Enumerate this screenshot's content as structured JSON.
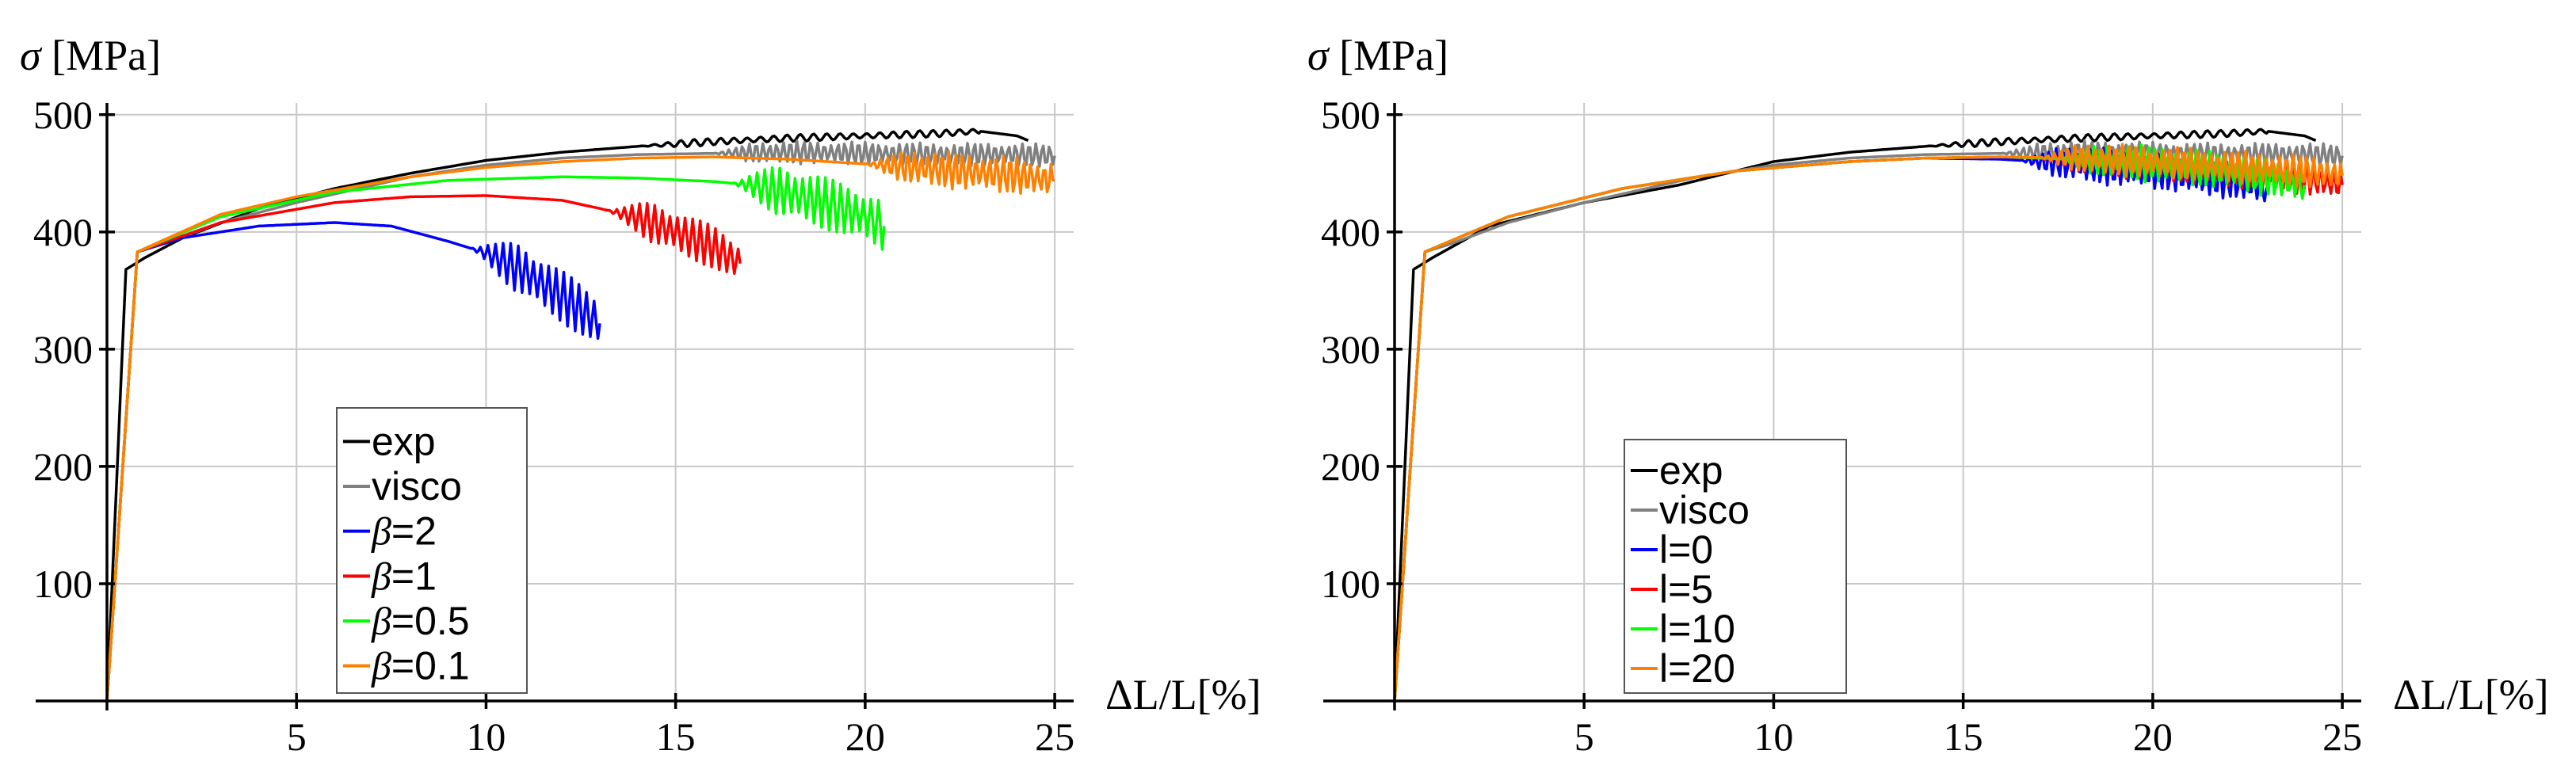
{
  "chart_data": [
    {
      "type": "line",
      "title": "",
      "ylabel": "σ [MPa]",
      "xlabel": "ΔL/L[%]",
      "xlim": [
        0,
        25.5
      ],
      "ylim": [
        0,
        510
      ],
      "xticks": [
        5,
        10,
        15,
        20,
        25
      ],
      "yticks": [
        100,
        200,
        300,
        400,
        500
      ],
      "grid": true,
      "legend_position": "lower-left",
      "series": [
        {
          "name": "exp",
          "label_prefix": "",
          "label_value": "exp",
          "color": "#000000",
          "points": [
            [
              0,
              0
            ],
            [
              0.5,
              368
            ],
            [
              1,
              378
            ],
            [
              2,
              395
            ],
            [
              4,
              420
            ],
            [
              6,
              437
            ],
            [
              8,
              450
            ],
            [
              10,
              461
            ],
            [
              12,
              468
            ],
            [
              14,
              473
            ],
            [
              16,
              477
            ],
            [
              18,
              480
            ],
            [
              20,
              482
            ],
            [
              22,
              484
            ],
            [
              23,
              486
            ],
            [
              24,
              482
            ],
            [
              24.3,
              478
            ]
          ],
          "oscillation": {
            "start": 14,
            "end": 23,
            "amplitude": 3,
            "period": 0.35
          }
        },
        {
          "name": "visco",
          "label_prefix": "",
          "label_value": "visco",
          "color": "#808080",
          "points": [
            [
              0,
              0
            ],
            [
              0.8,
              383
            ],
            [
              1.5,
              390
            ],
            [
              3,
              408
            ],
            [
              5,
              425
            ],
            [
              8,
              447
            ],
            [
              10,
              457
            ],
            [
              12,
              463
            ],
            [
              14,
              466
            ],
            [
              16,
              467
            ],
            [
              18,
              468
            ],
            [
              20,
              467
            ],
            [
              22,
              466
            ],
            [
              24,
              466
            ],
            [
              25,
              465
            ]
          ],
          "oscillation": {
            "start": 16,
            "end": 25,
            "amplitude": 10,
            "period": 0.18
          }
        },
        {
          "name": "β=2",
          "label_prefix": "β",
          "label_value": "=2",
          "color": "#0000ff",
          "points": [
            [
              0,
              0
            ],
            [
              0.8,
              383
            ],
            [
              2,
              395
            ],
            [
              4,
              405
            ],
            [
              6,
              408
            ],
            [
              7.5,
              405
            ],
            [
              9,
              392
            ],
            [
              10,
              382
            ],
            [
              11,
              366
            ],
            [
              12,
              345
            ],
            [
              13,
              322
            ]
          ],
          "oscillation": {
            "start": 9.6,
            "end": 13,
            "amplitude": 22,
            "period": 0.2
          }
        },
        {
          "name": "β=1",
          "label_prefix": "β",
          "label_value": "=1",
          "color": "#ff0000",
          "points": [
            [
              0,
              0
            ],
            [
              0.8,
              383
            ],
            [
              3,
              408
            ],
            [
              6,
              425
            ],
            [
              8,
              430
            ],
            [
              10,
              431
            ],
            [
              12,
              427
            ],
            [
              13,
              420
            ],
            [
              14,
              412
            ],
            [
              15,
              400
            ],
            [
              16,
              387
            ],
            [
              16.7,
              373
            ]
          ],
          "oscillation": {
            "start": 13.2,
            "end": 16.7,
            "amplitude": 18,
            "period": 0.2
          }
        },
        {
          "name": "β=0.5",
          "label_prefix": "β",
          "label_value": "=0.5",
          "color": "#00ff00",
          "points": [
            [
              0,
              0
            ],
            [
              0.8,
              383
            ],
            [
              3,
              413
            ],
            [
              6,
              434
            ],
            [
              9,
              444
            ],
            [
              12,
              447
            ],
            [
              14,
              446
            ],
            [
              16,
              443
            ],
            [
              17,
              440
            ],
            [
              18,
              433
            ],
            [
              19,
              424
            ],
            [
              20,
              413
            ],
            [
              20.5,
              405
            ]
          ],
          "oscillation": {
            "start": 16.5,
            "end": 20.5,
            "amplitude": 22,
            "period": 0.2
          }
        },
        {
          "name": "β=0.1",
          "label_prefix": "β",
          "label_value": "=0.1",
          "color": "#ff8000",
          "points": [
            [
              0,
              0
            ],
            [
              0.8,
              383
            ],
            [
              3,
              415
            ],
            [
              5,
              430
            ],
            [
              8,
              447
            ],
            [
              10,
              455
            ],
            [
              12,
              460
            ],
            [
              14,
              463
            ],
            [
              16,
              464
            ],
            [
              18,
              462
            ],
            [
              20,
              458
            ],
            [
              22,
              453
            ],
            [
              24,
              448
            ],
            [
              25,
              444
            ]
          ],
          "oscillation": {
            "start": 20,
            "end": 25,
            "amplitude": 16,
            "period": 0.18
          }
        }
      ]
    },
    {
      "type": "line",
      "title": "",
      "ylabel": "σ [MPa]",
      "xlabel": "ΔL/L[%]",
      "xlim": [
        0,
        25.5
      ],
      "ylim": [
        0,
        510
      ],
      "xticks": [
        5,
        10,
        15,
        20,
        25
      ],
      "yticks": [
        100,
        200,
        300,
        400,
        500
      ],
      "grid": true,
      "legend_position": "lower-left",
      "series": [
        {
          "name": "exp",
          "label_prefix": "",
          "label_value": "exp",
          "color": "#000000",
          "points": [
            [
              0,
              0
            ],
            [
              0.5,
              368
            ],
            [
              1,
              378
            ],
            [
              2.5,
              405
            ],
            [
              5,
              425
            ],
            [
              7.5,
              440
            ],
            [
              10,
              460
            ],
            [
              12,
              468
            ],
            [
              14,
              473
            ],
            [
              16,
              477
            ],
            [
              18,
              480
            ],
            [
              20,
              482
            ],
            [
              22,
              484
            ],
            [
              23,
              486
            ],
            [
              24,
              482
            ],
            [
              24.3,
              478
            ]
          ],
          "oscillation": {
            "start": 14,
            "end": 23,
            "amplitude": 3,
            "period": 0.35
          }
        },
        {
          "name": "visco",
          "label_prefix": "",
          "label_value": "visco",
          "color": "#808080",
          "points": [
            [
              0,
              0
            ],
            [
              0.8,
              383
            ],
            [
              1.5,
              390
            ],
            [
              3,
              408
            ],
            [
              5,
              425
            ],
            [
              8,
              447
            ],
            [
              10,
              457
            ],
            [
              12,
              463
            ],
            [
              14,
              466
            ],
            [
              16,
              467
            ],
            [
              18,
              468
            ],
            [
              20,
              467
            ],
            [
              22,
              466
            ],
            [
              24,
              466
            ],
            [
              25,
              465
            ]
          ],
          "oscillation": {
            "start": 16,
            "end": 25,
            "amplitude": 10,
            "period": 0.18
          }
        },
        {
          "name": "l=0",
          "label_prefix": "",
          "label_value": "l=0",
          "color": "#0000ff",
          "points": [
            [
              0,
              0
            ],
            [
              0.8,
              383
            ],
            [
              3,
              413
            ],
            [
              6,
              437
            ],
            [
              9,
              452
            ],
            [
              12,
              460
            ],
            [
              14,
              463
            ],
            [
              16,
              462
            ],
            [
              18,
              458
            ],
            [
              20,
              452
            ],
            [
              22,
              444
            ],
            [
              23,
              438
            ]
          ],
          "oscillation": {
            "start": 16.5,
            "end": 23,
            "amplitude": 16,
            "period": 0.18
          }
        },
        {
          "name": "l=5",
          "label_prefix": "",
          "label_value": "l=5",
          "color": "#ff0000",
          "points": [
            [
              0,
              0
            ],
            [
              0.8,
              383
            ],
            [
              3,
              413
            ],
            [
              6,
              437
            ],
            [
              9,
              452
            ],
            [
              12,
              460
            ],
            [
              14,
              463
            ],
            [
              16,
              464
            ],
            [
              18,
              462
            ],
            [
              20,
              458
            ],
            [
              22,
              452
            ],
            [
              24,
              446
            ],
            [
              25,
              440
            ]
          ],
          "oscillation": {
            "start": 17,
            "end": 25,
            "amplitude": 14,
            "period": 0.18
          }
        },
        {
          "name": "l=10",
          "label_prefix": "",
          "label_value": "l=10",
          "color": "#00ff00",
          "points": [
            [
              0,
              0
            ],
            [
              0.8,
              383
            ],
            [
              3,
              413
            ],
            [
              6,
              437
            ],
            [
              9,
              452
            ],
            [
              12,
              460
            ],
            [
              14,
              463
            ],
            [
              16,
              464
            ],
            [
              18,
              462
            ],
            [
              20,
              458
            ],
            [
              22,
              452
            ],
            [
              24,
              440
            ]
          ],
          "oscillation": {
            "start": 17.5,
            "end": 24,
            "amplitude": 16,
            "period": 0.18
          }
        },
        {
          "name": "l=20",
          "label_prefix": "",
          "label_value": "l=20",
          "color": "#ff8000",
          "points": [
            [
              0,
              0
            ],
            [
              0.8,
              383
            ],
            [
              3,
              413
            ],
            [
              6,
              437
            ],
            [
              9,
              452
            ],
            [
              12,
              460
            ],
            [
              14,
              463
            ],
            [
              16,
              464
            ],
            [
              18,
              463
            ],
            [
              20,
              460
            ],
            [
              22,
              456
            ],
            [
              24,
              452
            ],
            [
              25,
              448
            ]
          ],
          "oscillation": {
            "start": 17,
            "end": 25,
            "amplitude": 14,
            "period": 0.18
          }
        }
      ]
    }
  ]
}
